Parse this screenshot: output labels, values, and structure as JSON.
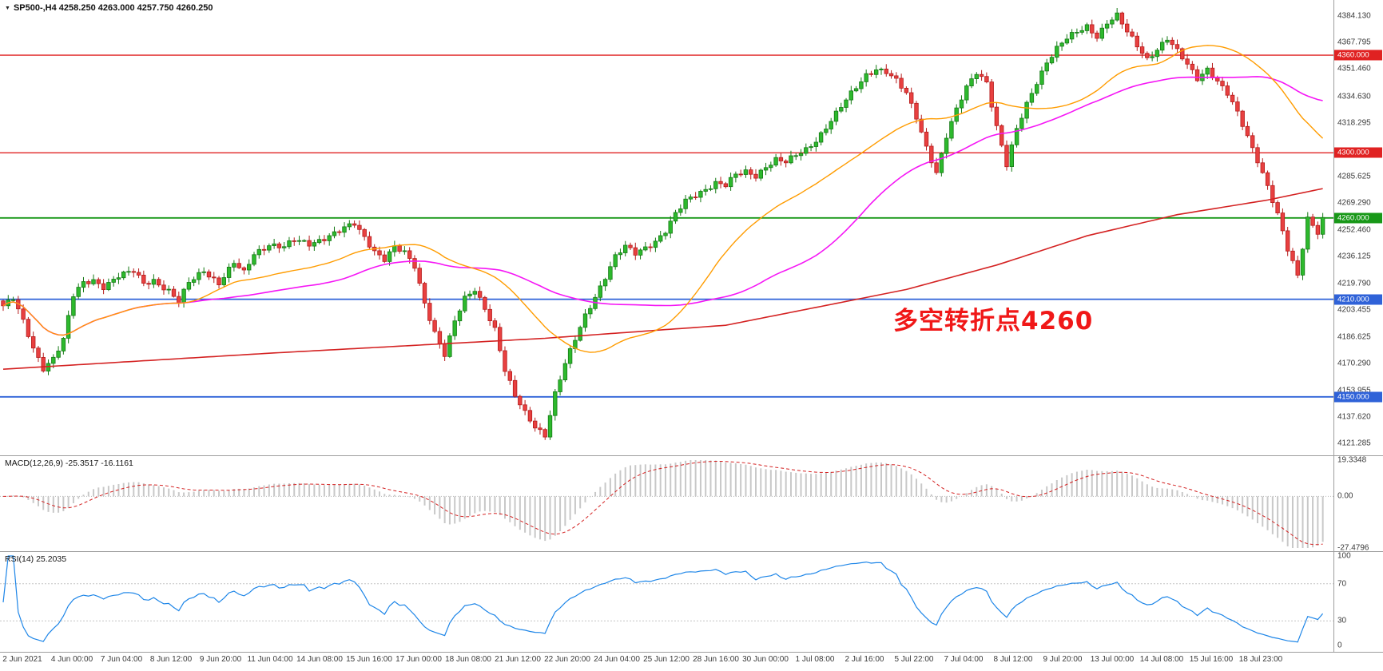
{
  "header": {
    "symbol_info": "SP500-,H4 4258.250 4263.000 4257.750 4260.250",
    "dropdown_icon": "▼"
  },
  "annotation": {
    "text": "多空转折点4260"
  },
  "colors": {
    "background": "#ffffff",
    "bull_body": "#2db92d",
    "bull_border": "#157a15",
    "bear_body": "#e84040",
    "bear_border": "#b51c1c",
    "ma_fast": "#ff9c00",
    "ma_mid": "#f516f5",
    "ma_slow": "#d42222",
    "macd_histogram": "#c8c8c8",
    "macd_signal": "#d42222",
    "rsi_line": "#1e86e8",
    "level_red": "#e02222",
    "level_green": "#189818",
    "level_blue": "#2f62d8",
    "annotation": "#f01818",
    "axis_text": "#3a3a3a"
  },
  "price_axis": {
    "labels": [
      "4384.130",
      "4367.795",
      "4351.460",
      "4334.630",
      "4318.295",
      "4285.625",
      "4269.290",
      "4252.460",
      "4236.125",
      "4219.790",
      "4203.455",
      "4186.625",
      "4170.290",
      "4153.955",
      "4137.620",
      "4121.285"
    ],
    "badges": [
      {
        "text": "4360.000",
        "color": "#e02222",
        "line_width": 1.4
      },
      {
        "text": "4300.000",
        "color": "#e02222",
        "line_width": 1.4
      },
      {
        "text": "4260.000",
        "color": "#189818",
        "line_width": 1.8
      },
      {
        "text": "4210.000",
        "color": "#2f62d8",
        "line_width": 1.8
      },
      {
        "text": "4150.000",
        "color": "#2f62d8",
        "line_width": 1.8
      }
    ]
  },
  "macd": {
    "label": "MACD(12,26,9) -25.3517 -16.1161",
    "axis_labels": [
      "19.3348",
      "0.00",
      "-27.4796"
    ],
    "fast": 12,
    "slow": 26,
    "signal": 9
  },
  "rsi": {
    "label": "RSI(14) 25.2035",
    "axis_labels": [
      "100",
      "70",
      "30",
      "0"
    ],
    "levels": [
      70,
      30
    ],
    "period": 14
  },
  "time_axis": [
    "2 Jun 2021",
    "4 Jun 00:00",
    "7 Jun 04:00",
    "8 Jun 12:00",
    "9 Jun 20:00",
    "11 Jun 04:00",
    "14 Jun 08:00",
    "15 Jun 16:00",
    "17 Jun 00:00",
    "18 Jun 08:00",
    "21 Jun 12:00",
    "22 Jun 20:00",
    "24 Jun 04:00",
    "25 Jun 12:00",
    "28 Jun 16:00",
    "30 Jun 00:00",
    "1 Jul 08:00",
    "2 Jul 16:00",
    "5 Jul 22:00",
    "7 Jul 04:00",
    "8 Jul 12:00",
    "9 Jul 20:00",
    "13 Jul 00:00",
    "14 Jul 08:00",
    "15 Jul 16:00",
    "18 Jul 23:00"
  ],
  "chart_data": {
    "type": "candlestick",
    "symbol": "SP500-",
    "timeframe": "H4",
    "current_bar": {
      "open": 4258.25,
      "high": 4263.0,
      "low": 4257.75,
      "close": 4260.25
    },
    "bars": 264,
    "price_range": {
      "min": 4118,
      "max": 4390
    },
    "levels": [
      4360,
      4300,
      4260,
      4210,
      4150
    ],
    "macd_range": {
      "min": -27.4796,
      "max": 19.3348
    },
    "macd_current": [
      -25.3517,
      -16.1161
    ],
    "rsi_current": 25.2035,
    "rsi_range": {
      "min": 0,
      "max": 100
    },
    "close_waypoints": [
      [
        0,
        4206
      ],
      [
        2,
        4210
      ],
      [
        4,
        4196
      ],
      [
        6,
        4180
      ],
      [
        8,
        4168
      ],
      [
        10,
        4174
      ],
      [
        12,
        4185
      ],
      [
        14,
        4212
      ],
      [
        16,
        4220
      ],
      [
        18,
        4222
      ],
      [
        20,
        4218
      ],
      [
        23,
        4224
      ],
      [
        26,
        4227
      ],
      [
        28,
        4220
      ],
      [
        30,
        4222
      ],
      [
        33,
        4215
      ],
      [
        35,
        4208
      ],
      [
        37,
        4220
      ],
      [
        40,
        4228
      ],
      [
        43,
        4220
      ],
      [
        46,
        4232
      ],
      [
        48,
        4226
      ],
      [
        50,
        4238
      ],
      [
        53,
        4244
      ],
      [
        56,
        4242
      ],
      [
        58,
        4246
      ],
      [
        61,
        4244
      ],
      [
        64,
        4248
      ],
      [
        67,
        4252
      ],
      [
        70,
        4256
      ],
      [
        72,
        4248
      ],
      [
        74,
        4240
      ],
      [
        76,
        4235
      ],
      [
        78,
        4242
      ],
      [
        80,
        4238
      ],
      [
        82,
        4230
      ],
      [
        84,
        4208
      ],
      [
        86,
        4190
      ],
      [
        88,
        4176
      ],
      [
        90,
        4196
      ],
      [
        92,
        4210
      ],
      [
        94,
        4216
      ],
      [
        96,
        4205
      ],
      [
        98,
        4192
      ],
      [
        100,
        4166
      ],
      [
        102,
        4150
      ],
      [
        104,
        4140
      ],
      [
        106,
        4132
      ],
      [
        108,
        4127
      ],
      [
        110,
        4152
      ],
      [
        112,
        4170
      ],
      [
        114,
        4185
      ],
      [
        116,
        4200
      ],
      [
        118,
        4212
      ],
      [
        120,
        4224
      ],
      [
        122,
        4236
      ],
      [
        124,
        4242
      ],
      [
        126,
        4238
      ],
      [
        128,
        4242
      ],
      [
        130,
        4246
      ],
      [
        132,
        4252
      ],
      [
        134,
        4262
      ],
      [
        136,
        4270
      ],
      [
        138,
        4274
      ],
      [
        140,
        4278
      ],
      [
        142,
        4282
      ],
      [
        144,
        4280
      ],
      [
        146,
        4286
      ],
      [
        148,
        4288
      ],
      [
        150,
        4286
      ],
      [
        152,
        4292
      ],
      [
        154,
        4296
      ],
      [
        156,
        4294
      ],
      [
        158,
        4298
      ],
      [
        160,
        4302
      ],
      [
        162,
        4308
      ],
      [
        164,
        4316
      ],
      [
        166,
        4324
      ],
      [
        168,
        4332
      ],
      [
        170,
        4340
      ],
      [
        172,
        4348
      ],
      [
        174,
        4352
      ],
      [
        176,
        4350
      ],
      [
        178,
        4344
      ],
      [
        180,
        4336
      ],
      [
        182,
        4322
      ],
      [
        184,
        4304
      ],
      [
        186,
        4288
      ],
      [
        188,
        4310
      ],
      [
        190,
        4326
      ],
      [
        192,
        4340
      ],
      [
        194,
        4350
      ],
      [
        196,
        4344
      ],
      [
        198,
        4316
      ],
      [
        200,
        4292
      ],
      [
        202,
        4314
      ],
      [
        204,
        4330
      ],
      [
        206,
        4344
      ],
      [
        208,
        4356
      ],
      [
        210,
        4364
      ],
      [
        212,
        4370
      ],
      [
        214,
        4374
      ],
      [
        216,
        4378
      ],
      [
        218,
        4372
      ],
      [
        220,
        4380
      ],
      [
        222,
        4384
      ],
      [
        224,
        4374
      ],
      [
        226,
        4366
      ],
      [
        228,
        4358
      ],
      [
        230,
        4364
      ],
      [
        232,
        4370
      ],
      [
        234,
        4362
      ],
      [
        236,
        4354
      ],
      [
        238,
        4346
      ],
      [
        240,
        4352
      ],
      [
        242,
        4344
      ],
      [
        244,
        4336
      ],
      [
        246,
        4324
      ],
      [
        248,
        4310
      ],
      [
        250,
        4296
      ],
      [
        252,
        4280
      ],
      [
        254,
        4262
      ],
      [
        256,
        4240
      ],
      [
        258,
        4224
      ],
      [
        260,
        4260
      ],
      [
        262,
        4252
      ],
      [
        263,
        4260.25
      ]
    ],
    "ma_slow_waypoints": [
      [
        0,
        4167
      ],
      [
        54,
        4177
      ],
      [
        108,
        4186
      ],
      [
        144,
        4194
      ],
      [
        180,
        4216
      ],
      [
        198,
        4231
      ],
      [
        216,
        4249
      ],
      [
        234,
        4262
      ],
      [
        252,
        4271
      ],
      [
        263,
        4278
      ]
    ]
  }
}
